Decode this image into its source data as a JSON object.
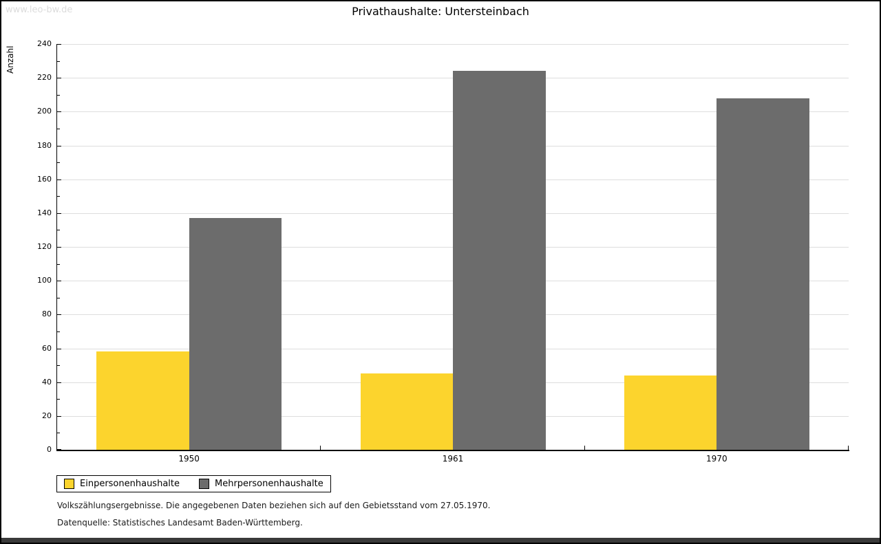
{
  "watermark": "www.leo-bw.de",
  "footnotes": {
    "line1": "Volkszählungsergebnisse. Die angegebenen Daten beziehen sich auf den Gebietsstand vom 27.05.1970.",
    "line2": "Datenquelle: Statistisches Landesamt Baden-Württemberg."
  },
  "colors": {
    "bar_yellow": "#FCD42D",
    "bar_gray": "#6C6C6C",
    "gridline": "#DDDDDD",
    "watermark_text": "#DCDCDC",
    "axis": "#000000"
  },
  "chart_data": {
    "type": "bar",
    "title": "Privathaushalte: Untersteinbach",
    "xlabel": "",
    "ylabel": "Anzahl",
    "categories": [
      "1950",
      "1961",
      "1970"
    ],
    "series": [
      {
        "name": "Einpersonenhaushalte",
        "color": "#FCD42D",
        "values": [
          58,
          45,
          44
        ]
      },
      {
        "name": "Mehrpersonenhaushalte",
        "color": "#6C6C6C",
        "values": [
          137,
          224,
          208
        ]
      }
    ],
    "ylim": [
      0,
      240
    ],
    "ytick_step": 20,
    "yminor_step": 10,
    "grid": true,
    "legend_position": "bottom-left"
  }
}
